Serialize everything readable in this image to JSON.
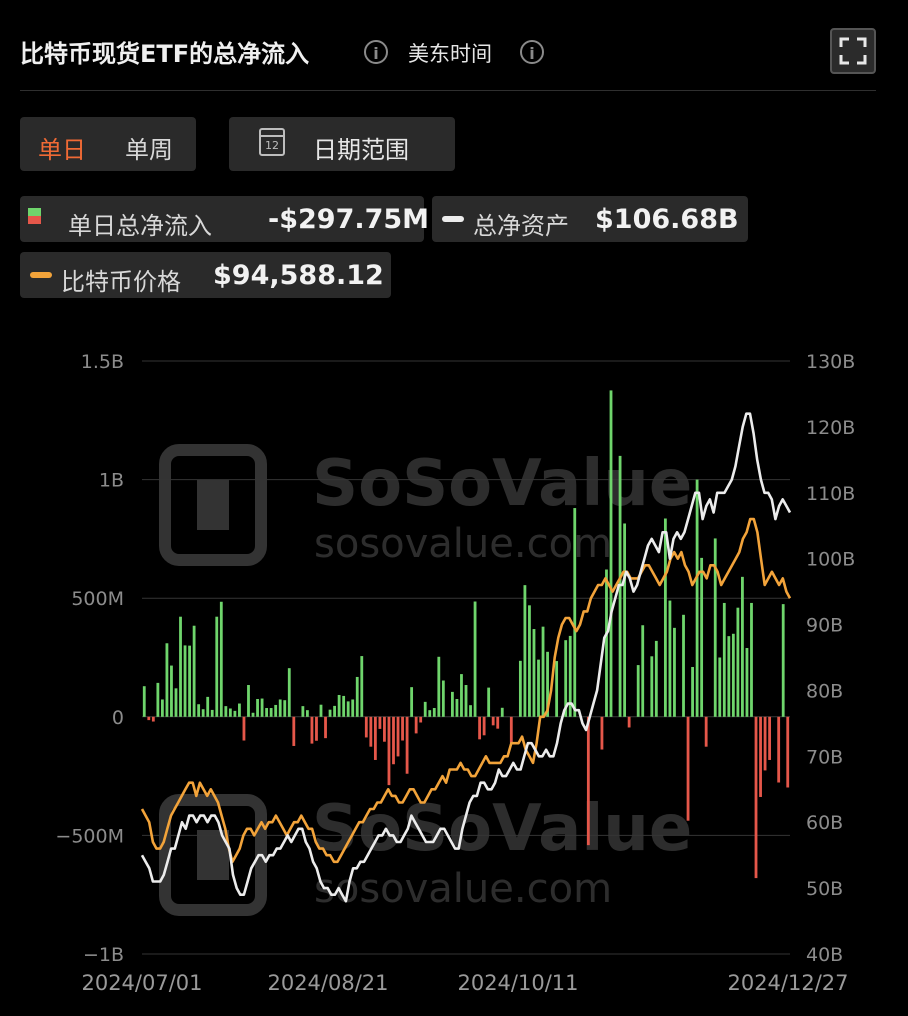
{
  "header": {
    "title": "比特币现货ETF的总净流入",
    "timezone": "美东时间"
  },
  "controls": {
    "period_daily": "单日",
    "period_weekly": "单周",
    "date_range": "日期范围",
    "calendar_day": "12"
  },
  "legend": {
    "inflow_label": "单日总净流入",
    "inflow_value": "-$297.75M",
    "assets_label": "总净资产",
    "assets_value": "$106.68B",
    "price_label": "比特币价格",
    "price_value": "$94,588.12"
  },
  "colors": {
    "positive": "#6fd56c",
    "negative": "#e5574a",
    "assets_line": "#ececec",
    "price_line": "#f2a33a",
    "active_tab": "#f06a35"
  },
  "watermark": {
    "brand": "SoSoValue",
    "url": "sosovalue.com"
  },
  "chart_data": {
    "type": "bar+line",
    "left_axis_ticks": [
      "1.5B",
      "1B",
      "500M",
      "0",
      "−500M",
      "−1B"
    ],
    "right_axis_ticks": [
      "130B",
      "120B",
      "110B",
      "100B",
      "90B",
      "80B",
      "70B",
      "60B",
      "50B",
      "40B"
    ],
    "x_tick_labels": [
      "2024/07/01",
      "2024/08/21",
      "2024/10/11",
      "2024/12/27"
    ],
    "left_ylim": [
      -1000,
      1500
    ],
    "left_unit": "M",
    "right_ylim": [
      40,
      130
    ],
    "right_unit": "B",
    "daily_net_inflow_m": [
      129,
      -14,
      -20,
      143,
      73,
      310,
      216,
      120,
      422,
      301,
      300,
      384,
      53,
      32,
      84,
      29,
      422,
      485,
      45,
      35,
      25,
      56,
      -100,
      134,
      17,
      75,
      77,
      37,
      37,
      50,
      73,
      70,
      205,
      -123,
      0,
      45,
      28,
      -113,
      -101,
      51,
      -90,
      30,
      46,
      92,
      88,
      65,
      73,
      168,
      256,
      -87,
      -126,
      -182,
      -51,
      -105,
      -288,
      -200,
      -167,
      -100,
      -240,
      125,
      -70,
      -24,
      63,
      28,
      37,
      253,
      153,
      0,
      105,
      75,
      180,
      134,
      49,
      486,
      -95,
      -78,
      123,
      -36,
      -50,
      38,
      0,
      -110,
      0,
      236,
      555,
      470,
      370,
      241,
      380,
      274,
      0,
      235,
      0,
      323,
      341,
      880,
      0,
      0,
      -541,
      0,
      0,
      -138,
      621,
      1376,
      0,
      1100,
      815,
      -45,
      0,
      218,
      386,
      0,
      255,
      320,
      0,
      836,
      490,
      375,
      0,
      430,
      -438,
      210,
      1000,
      670,
      -126,
      0,
      752,
      250,
      480,
      340,
      350,
      460,
      590,
      290,
      480,
      -680,
      -338,
      -226,
      -182,
      0,
      -277,
      475,
      -298
    ],
    "total_net_assets_b": [
      55,
      54,
      53,
      51,
      51,
      51,
      52,
      54,
      56,
      56,
      58,
      60,
      59,
      61,
      61,
      60,
      61,
      61,
      60,
      61,
      61,
      60,
      58,
      57,
      56,
      52,
      50,
      49,
      49,
      51,
      53,
      54,
      55,
      55,
      54,
      55,
      55,
      56,
      56,
      57,
      58,
      57,
      58,
      59,
      59,
      57,
      56,
      54,
      53,
      51,
      50,
      50,
      49,
      49,
      50,
      49,
      48,
      51,
      53,
      53,
      54,
      54,
      55,
      56,
      57,
      58,
      58,
      59,
      58,
      58,
      57,
      57,
      58,
      59,
      61,
      60,
      59,
      58,
      57,
      57,
      57,
      58,
      59,
      59,
      58,
      57,
      56,
      56,
      59,
      61,
      63,
      64,
      64,
      66,
      66,
      65,
      65,
      66,
      68,
      67,
      67,
      68,
      69,
      68,
      68,
      70,
      72,
      72,
      71,
      70,
      70,
      71,
      70,
      70,
      72,
      75,
      77,
      78,
      78,
      77,
      77,
      75,
      74,
      76,
      78,
      80,
      84,
      88,
      89,
      92,
      94,
      96,
      96,
      98,
      97,
      95,
      96,
      98,
      100,
      102,
      103,
      102,
      101,
      104,
      104,
      100,
      103,
      104,
      103,
      104,
      106,
      108,
      110,
      110,
      106,
      108,
      109,
      107,
      110,
      110,
      110,
      111,
      112,
      114,
      117,
      120,
      122,
      122,
      119,
      115,
      112,
      110,
      110,
      109,
      106,
      108,
      109,
      108,
      107
    ],
    "btc_price_k": [
      62,
      61,
      60,
      57,
      56,
      56,
      57,
      59,
      61,
      62,
      63,
      64,
      65,
      66,
      66,
      64,
      66,
      65,
      64,
      65,
      64,
      63,
      61,
      59,
      56,
      54,
      55,
      56,
      58,
      59,
      59,
      58,
      59,
      60,
      59,
      60,
      60,
      61,
      60,
      59,
      58,
      59,
      60,
      60,
      61,
      60,
      59,
      59,
      57,
      56,
      56,
      55,
      55,
      54,
      54,
      55,
      56,
      57,
      58,
      59,
      60,
      60,
      61,
      62,
      62,
      63,
      63,
      64,
      65,
      64,
      64,
      63,
      63,
      64,
      65,
      65,
      64,
      63,
      63,
      64,
      65,
      65,
      66,
      67,
      66,
      68,
      68,
      68,
      69,
      68,
      68,
      67,
      67,
      68,
      69,
      70,
      69,
      69,
      69,
      69,
      70,
      70,
      72,
      72,
      72,
      73,
      71,
      70,
      69,
      72,
      76,
      76,
      77,
      80,
      85,
      88,
      90,
      91,
      91,
      90,
      89,
      90,
      92,
      92,
      94,
      95,
      96,
      96,
      97,
      96,
      95,
      96,
      97,
      98,
      98,
      97,
      97,
      97,
      98,
      99,
      99,
      98,
      97,
      96,
      97,
      98,
      100,
      101,
      100,
      101,
      99,
      98,
      96,
      97,
      98,
      98,
      97,
      99,
      99,
      98,
      96,
      97,
      98,
      99,
      100,
      101,
      103,
      104,
      106,
      106,
      104,
      100,
      96,
      97,
      98,
      97,
      96,
      97,
      95,
      94
    ]
  }
}
